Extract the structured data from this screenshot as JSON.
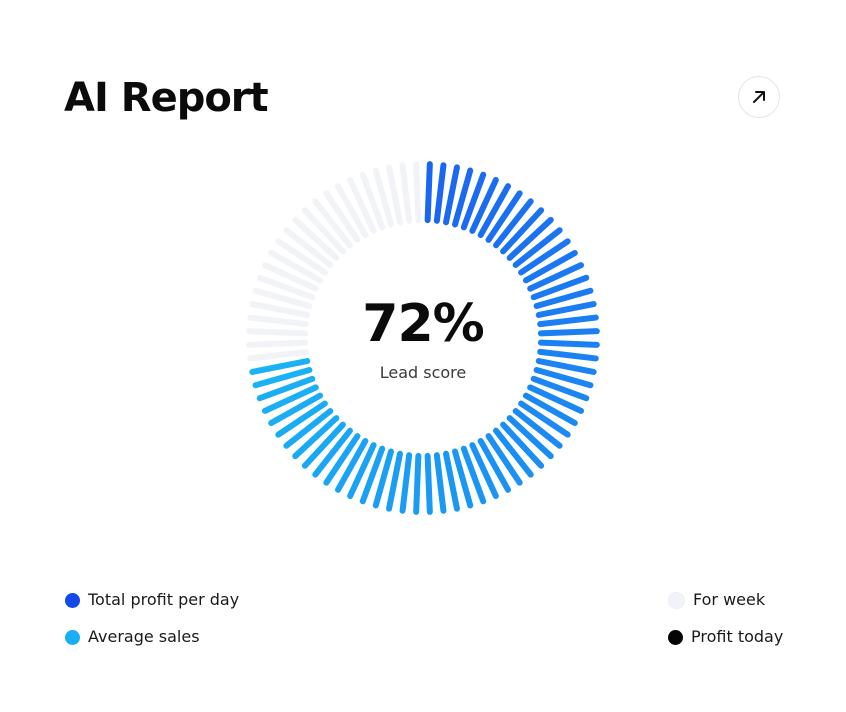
{
  "header": {
    "title": "AI Report",
    "expand_icon": "arrow-up-right-icon"
  },
  "chart_data": {
    "type": "radial-gauge",
    "title": "AI Report",
    "value_percent": 72,
    "value_label": "72%",
    "center_label": "Lead score",
    "segments": [
      {
        "name": "Total profit per day",
        "color": "#1b66f0"
      },
      {
        "name": "Average sales",
        "color": "#1ab2f5"
      }
    ],
    "background_color": "#f1f3f7"
  },
  "legend": {
    "left": [
      {
        "label": "Total profit per day",
        "color": "#1548e8"
      },
      {
        "label": "Average sales",
        "color": "#1aaef5"
      }
    ],
    "right": [
      {
        "label": "For week",
        "color": "#f1f3f8"
      },
      {
        "label": "Profit today",
        "color": "#050505"
      }
    ]
  }
}
